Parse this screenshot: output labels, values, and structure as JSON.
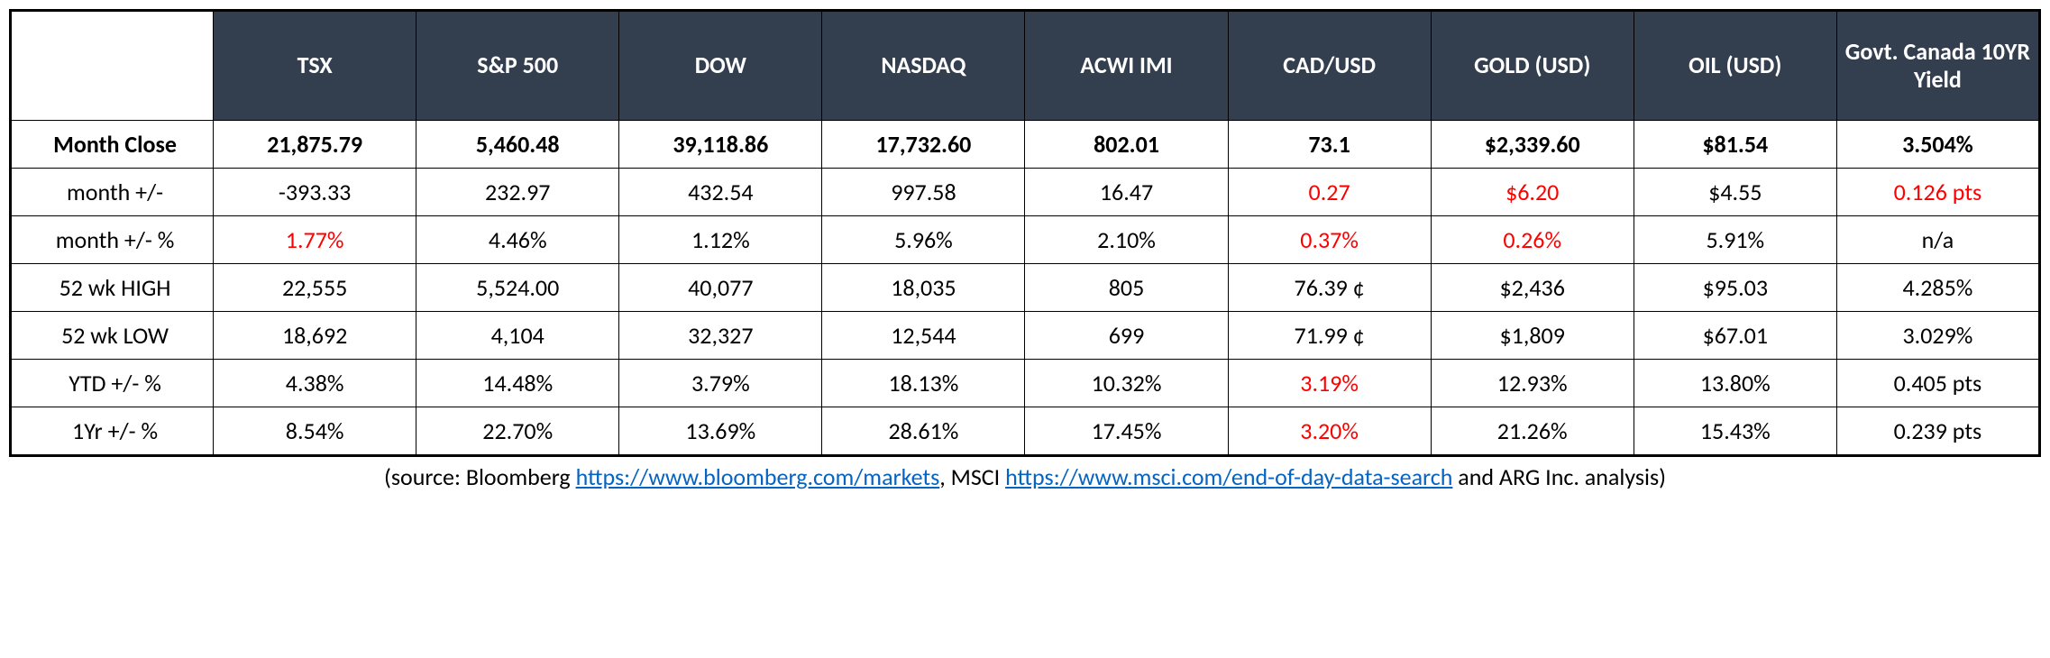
{
  "table": {
    "header_bg": "#333f4f",
    "header_fg": "#ffffff",
    "border_color": "#000000",
    "negative_color": "#ff0000",
    "link_color": "#0563c1",
    "columns": [
      "",
      "TSX",
      "S&P 500",
      "DOW",
      "NASDAQ",
      "ACWI IMI",
      "CAD/USD",
      "GOLD (USD)",
      "OIL (USD)",
      "Govt. Canada 10YR Yield"
    ],
    "rows": [
      {
        "label": "Month Close",
        "bold": true,
        "cells": [
          {
            "v": "21,875.79"
          },
          {
            "v": "5,460.48"
          },
          {
            "v": "39,118.86"
          },
          {
            "v": "17,732.60"
          },
          {
            "v": "802.01"
          },
          {
            "v": "73.1"
          },
          {
            "v": "$2,339.60"
          },
          {
            "v": "$81.54"
          },
          {
            "v": "3.504%"
          }
        ]
      },
      {
        "label": "month +/-",
        "cells": [
          {
            "v": "-393.33"
          },
          {
            "v": "232.97"
          },
          {
            "v": "432.54"
          },
          {
            "v": "997.58"
          },
          {
            "v": "16.47"
          },
          {
            "v": "0.27",
            "neg": true
          },
          {
            "v": "$6.20",
            "neg": true
          },
          {
            "v": "$4.55"
          },
          {
            "v": "0.126 pts",
            "neg": true
          }
        ]
      },
      {
        "label": "month +/- %",
        "cells": [
          {
            "v": "1.77%",
            "neg": true
          },
          {
            "v": "4.46%"
          },
          {
            "v": "1.12%"
          },
          {
            "v": "5.96%"
          },
          {
            "v": "2.10%"
          },
          {
            "v": "0.37%",
            "neg": true
          },
          {
            "v": "0.26%",
            "neg": true
          },
          {
            "v": "5.91%"
          },
          {
            "v": "n/a"
          }
        ]
      },
      {
        "label": "52 wk HIGH",
        "cells": [
          {
            "v": "22,555"
          },
          {
            "v": "5,524.00"
          },
          {
            "v": "40,077"
          },
          {
            "v": "18,035"
          },
          {
            "v": "805"
          },
          {
            "v": "76.39 ¢"
          },
          {
            "v": "$2,436"
          },
          {
            "v": "$95.03"
          },
          {
            "v": "4.285%"
          }
        ]
      },
      {
        "label": "52 wk LOW",
        "cells": [
          {
            "v": "18,692"
          },
          {
            "v": "4,104"
          },
          {
            "v": "32,327"
          },
          {
            "v": "12,544"
          },
          {
            "v": "699"
          },
          {
            "v": "71.99 ¢"
          },
          {
            "v": "$1,809"
          },
          {
            "v": "$67.01"
          },
          {
            "v": "3.029%"
          }
        ]
      },
      {
        "label": "YTD +/- %",
        "cells": [
          {
            "v": "4.38%"
          },
          {
            "v": "14.48%"
          },
          {
            "v": "3.79%"
          },
          {
            "v": "18.13%"
          },
          {
            "v": "10.32%"
          },
          {
            "v": "3.19%",
            "neg": true
          },
          {
            "v": "12.93%"
          },
          {
            "v": "13.80%"
          },
          {
            "v": "0.405 pts"
          }
        ]
      },
      {
        "label": "1Yr +/- %",
        "cells": [
          {
            "v": "8.54%"
          },
          {
            "v": "22.70%"
          },
          {
            "v": "13.69%"
          },
          {
            "v": "28.61%"
          },
          {
            "v": "17.45%"
          },
          {
            "v": "3.20%",
            "neg": true
          },
          {
            "v": "21.26%"
          },
          {
            "v": "15.43%"
          },
          {
            "v": "0.239 pts"
          }
        ]
      }
    ]
  },
  "source": {
    "prefix": "(source: Bloomberg ",
    "link1_text": "https://www.bloomberg.com/markets",
    "mid1": ", MSCI ",
    "link2_text": "https://www.msci.com/end-of-day-data-search",
    "suffix": " and ARG Inc. analysis)"
  }
}
